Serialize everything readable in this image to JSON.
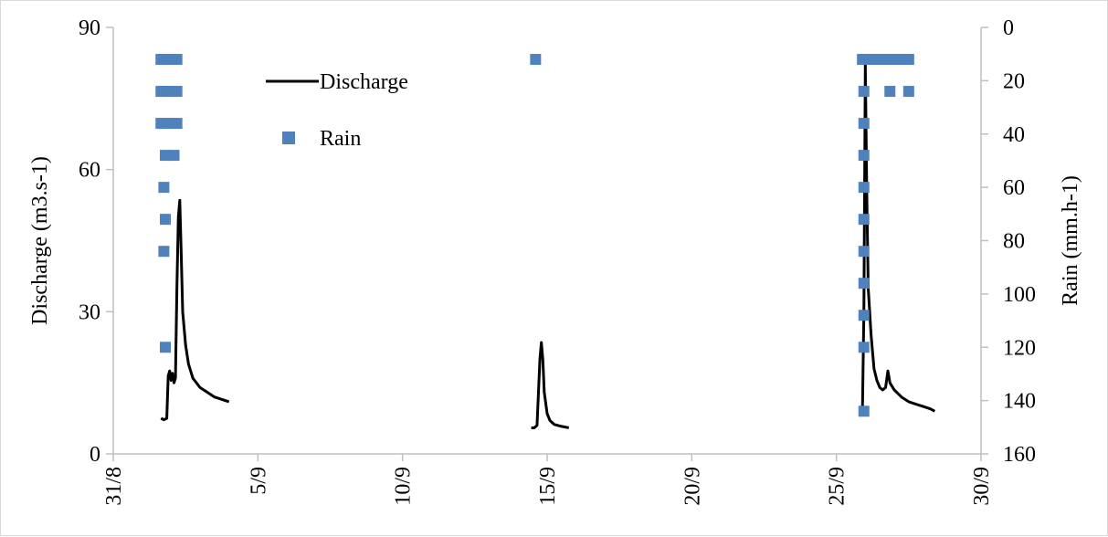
{
  "chart_data": {
    "type": "line",
    "title": "",
    "xlabel": "",
    "ylabel": "Discharge (m3.s-1)",
    "y2label": "Rain (mm.h-1)",
    "x_axis": {
      "type": "date",
      "range": [
        "2020-08-31",
        "2020-09-30"
      ],
      "tick_labels": [
        "31/8",
        "5/9",
        "10/9",
        "15/9",
        "20/9",
        "25/9",
        "30/9"
      ],
      "tick_days": [
        0,
        5,
        10,
        15,
        20,
        25,
        30
      ]
    },
    "y_axis": {
      "range": [
        0,
        90
      ],
      "ticks": [
        0,
        30,
        60,
        90
      ],
      "tick_labels": [
        "0",
        "30",
        "60",
        "90"
      ]
    },
    "y2_axis": {
      "range": [
        0,
        160
      ],
      "reversed": true,
      "ticks": [
        0,
        20,
        40,
        60,
        80,
        100,
        120,
        140,
        160
      ],
      "tick_labels": [
        "0",
        "20",
        "40",
        "60",
        "80",
        "100",
        "120",
        "140",
        "160"
      ]
    },
    "grid": false,
    "legend": {
      "placement": "top-left",
      "entries": [
        {
          "name": "Discharge",
          "marker": "line"
        },
        {
          "name": "Rain",
          "marker": "square"
        }
      ]
    },
    "colors": {
      "discharge": "#000000",
      "rain": "#4f81bd",
      "axis": "#bfbfbf"
    },
    "series": [
      {
        "name": "Discharge",
        "axis": "left",
        "style": "line",
        "points": [
          [
            1.65,
            7.5
          ],
          [
            1.75,
            7.2
          ],
          [
            1.85,
            7.5
          ],
          [
            1.9,
            16.5
          ],
          [
            1.95,
            17.5
          ],
          [
            2.0,
            15.5
          ],
          [
            2.05,
            17.0
          ],
          [
            2.1,
            15.0
          ],
          [
            2.15,
            16.0
          ],
          [
            2.2,
            35.0
          ],
          [
            2.25,
            50.0
          ],
          [
            2.3,
            53.5
          ],
          [
            2.35,
            42.0
          ],
          [
            2.4,
            30.0
          ],
          [
            2.5,
            23.0
          ],
          [
            2.6,
            19.0
          ],
          [
            2.75,
            16.0
          ],
          [
            3.0,
            14.0
          ],
          [
            3.25,
            13.0
          ],
          [
            3.5,
            12.0
          ],
          [
            3.75,
            11.5
          ],
          [
            4.0,
            11.0
          ]
        ]
      },
      {
        "name": "Discharge",
        "axis": "left",
        "style": "line",
        "points": [
          [
            14.45,
            5.5
          ],
          [
            14.55,
            5.5
          ],
          [
            14.65,
            6.0
          ],
          [
            14.75,
            20.0
          ],
          [
            14.8,
            23.5
          ],
          [
            14.85,
            20.0
          ],
          [
            14.9,
            13.0
          ],
          [
            15.0,
            8.5
          ],
          [
            15.1,
            7.0
          ],
          [
            15.25,
            6.2
          ],
          [
            15.5,
            5.8
          ],
          [
            15.75,
            5.5
          ]
        ]
      },
      {
        "name": "Discharge",
        "axis": "left",
        "style": "line",
        "points": [
          [
            25.9,
            9.0
          ],
          [
            25.95,
            30.0
          ],
          [
            26.0,
            82.0
          ],
          [
            26.05,
            55.0
          ],
          [
            26.1,
            35.0
          ],
          [
            26.2,
            25.0
          ],
          [
            26.3,
            18.0
          ],
          [
            26.4,
            15.5
          ],
          [
            26.5,
            14.0
          ],
          [
            26.6,
            13.5
          ],
          [
            26.7,
            14.0
          ],
          [
            26.78,
            17.5
          ],
          [
            26.85,
            15.0
          ],
          [
            27.0,
            13.5
          ],
          [
            27.25,
            12.0
          ],
          [
            27.5,
            11.0
          ],
          [
            27.75,
            10.5
          ],
          [
            28.0,
            10.0
          ],
          [
            28.25,
            9.5
          ],
          [
            28.4,
            9.0
          ]
        ]
      },
      {
        "name": "Rain",
        "axis": "right",
        "style": "marker",
        "points": [
          [
            1.65,
            12
          ],
          [
            1.75,
            12
          ],
          [
            1.85,
            12
          ],
          [
            2.0,
            12
          ],
          [
            2.2,
            12
          ],
          [
            1.65,
            24
          ],
          [
            1.75,
            24
          ],
          [
            2.0,
            24
          ],
          [
            2.2,
            24
          ],
          [
            1.65,
            36
          ],
          [
            1.75,
            36
          ],
          [
            2.0,
            36
          ],
          [
            2.2,
            36
          ],
          [
            1.8,
            48
          ],
          [
            2.1,
            48
          ],
          [
            1.75,
            60
          ],
          [
            1.8,
            72
          ],
          [
            1.75,
            84
          ],
          [
            1.8,
            120
          ],
          [
            14.6,
            12
          ],
          [
            25.9,
            12
          ],
          [
            26.1,
            12
          ],
          [
            26.3,
            12
          ],
          [
            26.5,
            12
          ],
          [
            26.7,
            12
          ],
          [
            26.9,
            12
          ],
          [
            27.1,
            12
          ],
          [
            27.3,
            12
          ],
          [
            27.5,
            12
          ],
          [
            25.95,
            24
          ],
          [
            26.85,
            24
          ],
          [
            27.5,
            24
          ],
          [
            25.95,
            36
          ],
          [
            25.95,
            48
          ],
          [
            25.95,
            60
          ],
          [
            25.95,
            72
          ],
          [
            25.95,
            84
          ],
          [
            25.95,
            96
          ],
          [
            25.95,
            108
          ],
          [
            25.95,
            120
          ],
          [
            25.95,
            144
          ]
        ]
      }
    ]
  }
}
